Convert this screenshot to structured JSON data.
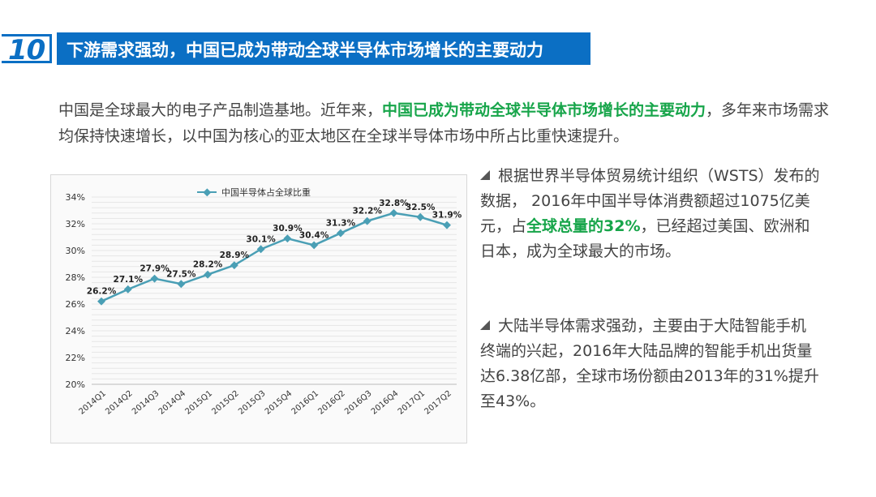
{
  "header": {
    "number": "10",
    "title": "下游需求强劲，中国已成为带动全球半导体市场增长的主要动力"
  },
  "intro": {
    "part1": "中国是全球最大的电子产品制造基地。近年来，",
    "highlight": "中国已成为带动全球半导体市场增长的主要动力",
    "part2": "，多年来市场需求均保持快速增长，以中国为核心的亚太地区在全球半导体市场中所占比重快速提升。"
  },
  "bullets": [
    {
      "part1": "根据世界半导体贸易统计组织（WSTS）发布的数据， 2016年中国半导体消费额超过1075亿美元，占",
      "highlight": "全球总量的32%",
      "part2": "，已经超过美国、欧洲和日本，成为全球最大的市场。"
    },
    {
      "part1": "大陆半导体需求强劲，主要由于大陆智能手机终端的兴起，2016年大陆品牌的智能手机出货量达6.38亿部，全球市场份额由2013年的31%提升至43%。",
      "highlight": "",
      "part2": ""
    }
  ],
  "colors": {
    "brand_blue": "#0b6fc4",
    "highlight_green": "#17a54a",
    "series_line": "#4a9fb5"
  },
  "chart_data": {
    "type": "line",
    "title": "",
    "xlabel": "",
    "ylabel": "",
    "categories": [
      "2014Q1",
      "2014Q2",
      "2014Q3",
      "2014Q4",
      "2015Q1",
      "2015Q2",
      "2015Q3",
      "2015Q4",
      "2016Q1",
      "2016Q2",
      "2016Q3",
      "2016Q4",
      "2017Q1",
      "2017Q2"
    ],
    "series": [
      {
        "name": "中国半导体占全球比重",
        "values": [
          26.2,
          27.1,
          27.9,
          27.5,
          28.2,
          28.9,
          30.1,
          30.9,
          30.4,
          31.3,
          32.2,
          32.8,
          32.5,
          31.9
        ],
        "labels": [
          "26.2%",
          "27.1%",
          "27.9%",
          "27.5%",
          "28.2%",
          "28.9%",
          "30.1%",
          "30.9%",
          "30.4%",
          "31.3%",
          "32.2%",
          "32.8%",
          "32.5%",
          "31.9%"
        ]
      }
    ],
    "ylim": [
      20,
      34
    ],
    "yticks": [
      "20%",
      "22%",
      "24%",
      "26%",
      "28%",
      "30%",
      "32%",
      "34%"
    ],
    "grid": true,
    "legend": "top-left"
  }
}
